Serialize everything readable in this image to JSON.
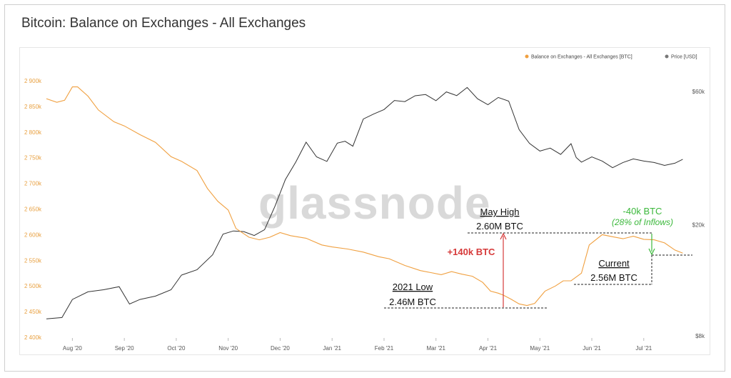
{
  "page_title": "Bitcoin: Balance on Exchanges - All Exchanges",
  "watermark": "glassnode",
  "colors": {
    "balance": "#f0a040",
    "price": "#333333",
    "red": "#d63a3a",
    "green": "#3bb83b"
  },
  "chart_data": {
    "type": "line",
    "title": "",
    "legend": {
      "placement": "top-right",
      "entries": [
        "Balance on Exchanges - All Exchanges [BTC]",
        "Price [USD]"
      ]
    },
    "x_ticks": [
      "Aug '20",
      "Sep '20",
      "Oct '20",
      "Nov '20",
      "Dec '20",
      "Jan '21",
      "Feb '21",
      "Mar '21",
      "Apr '21",
      "May '21",
      "Jun '21",
      "Jul '21"
    ],
    "x_range_months": [
      -0.5,
      11.8
    ],
    "y_left": {
      "ticks": [
        "2 400k",
        "2 450k",
        "2 500k",
        "2 550k",
        "2 600k",
        "2 650k",
        "2 700k",
        "2 750k",
        "2 800k",
        "2 850k",
        "2 900k"
      ],
      "range": [
        2400000,
        2900000
      ]
    },
    "y_right": {
      "ticks": [
        "$8k",
        "$20k",
        "$60k"
      ],
      "scale": "log",
      "range": [
        8000,
        60000
      ]
    },
    "series": [
      {
        "name": "Balance on Exchanges - All Exchanges [BTC]",
        "axis": "left",
        "x": [
          -0.5,
          -0.3,
          -0.15,
          0.0,
          0.1,
          0.3,
          0.5,
          0.8,
          1.0,
          1.3,
          1.6,
          1.9,
          2.1,
          2.4,
          2.6,
          2.8,
          3.0,
          3.15,
          3.4,
          3.6,
          3.8,
          4.0,
          4.2,
          4.5,
          4.8,
          5.0,
          5.3,
          5.6,
          5.9,
          6.1,
          6.4,
          6.7,
          6.9,
          7.1,
          7.3,
          7.5,
          7.7,
          7.9,
          8.05,
          8.2,
          8.3,
          8.45,
          8.6,
          8.75,
          8.9,
          9.1,
          9.3,
          9.45,
          9.6,
          9.8,
          9.95,
          10.2,
          10.4,
          10.6,
          10.8,
          11.0,
          11.2,
          11.4,
          11.6,
          11.75
        ],
        "values": [
          2865000,
          2858000,
          2862000,
          2888000,
          2888000,
          2870000,
          2843000,
          2820000,
          2812000,
          2795000,
          2780000,
          2752000,
          2743000,
          2725000,
          2690000,
          2665000,
          2648000,
          2612000,
          2595000,
          2590000,
          2595000,
          2604000,
          2598000,
          2593000,
          2580000,
          2576000,
          2572000,
          2566000,
          2557000,
          2553000,
          2540000,
          2530000,
          2526000,
          2522000,
          2528000,
          2523000,
          2519000,
          2507000,
          2490000,
          2486000,
          2482000,
          2474000,
          2465000,
          2462000,
          2466000,
          2490000,
          2500000,
          2510000,
          2510000,
          2525000,
          2580000,
          2600000,
          2596000,
          2592000,
          2597000,
          2591000,
          2590000,
          2584000,
          2570000,
          2564000
        ]
      },
      {
        "name": "Price [USD]",
        "axis": "right",
        "x": [
          -0.5,
          -0.2,
          0.0,
          0.3,
          0.6,
          0.9,
          1.1,
          1.3,
          1.6,
          1.9,
          2.1,
          2.4,
          2.7,
          2.9,
          3.1,
          3.3,
          3.5,
          3.7,
          3.9,
          4.1,
          4.3,
          4.5,
          4.7,
          4.9,
          5.1,
          5.25,
          5.4,
          5.6,
          5.8,
          6.0,
          6.2,
          6.4,
          6.6,
          6.8,
          7.0,
          7.2,
          7.4,
          7.6,
          7.8,
          8.0,
          8.2,
          8.4,
          8.6,
          8.8,
          9.0,
          9.2,
          9.4,
          9.6,
          9.7,
          9.8,
          10.0,
          10.2,
          10.4,
          10.6,
          10.8,
          11.0,
          11.2,
          11.4,
          11.6,
          11.75
        ],
        "values": [
          9200,
          9300,
          10800,
          11500,
          11700,
          12000,
          10400,
          10800,
          11100,
          11700,
          13200,
          13800,
          15600,
          18500,
          19000,
          18900,
          18300,
          19200,
          23300,
          29000,
          33500,
          39500,
          35000,
          33700,
          39200,
          39800,
          38200,
          47800,
          49800,
          51700,
          55700,
          55200,
          57900,
          58500,
          55600,
          59800,
          58000,
          62000,
          56500,
          53800,
          57100,
          55400,
          43800,
          39100,
          36700,
          37600,
          35700,
          39000,
          34800,
          33500,
          35000,
          33800,
          32000,
          33400,
          34400,
          33800,
          33400,
          32600,
          33200,
          34300
        ]
      }
    ],
    "annotations": {
      "may_high": {
        "label": "May High",
        "value": "2.60M BTC"
      },
      "low_2021": {
        "label": "2021 Low",
        "value": "2.46M BTC"
      },
      "current": {
        "label": "Current",
        "value": "2.56M BTC"
      },
      "increase": {
        "label": "+140k BTC"
      },
      "decrease": {
        "label": "-40k BTC",
        "note": "(28% of Inflows)"
      }
    }
  }
}
